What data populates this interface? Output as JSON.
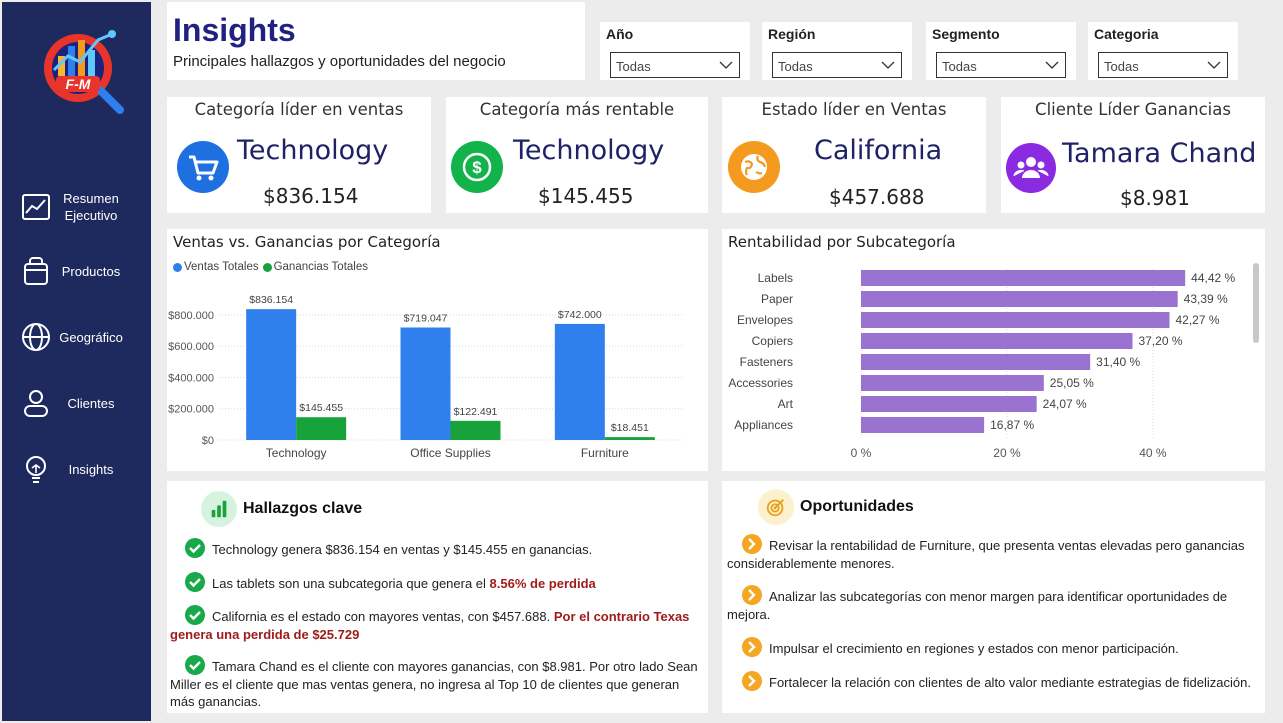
{
  "sidebar": {
    "items": [
      {
        "label": "Resumen Ejecutivo",
        "icon": "trend-chart-icon"
      },
      {
        "label": "Productos",
        "icon": "bag-icon"
      },
      {
        "label": "Geográfico",
        "icon": "globe-icon"
      },
      {
        "label": "Clientes",
        "icon": "user-icon"
      },
      {
        "label": "Insights",
        "icon": "lightbulb-icon"
      }
    ]
  },
  "header": {
    "title": "Insights",
    "subtitle": "Principales hallazgos y oportunidades del negocio"
  },
  "filters": [
    {
      "label": "Año",
      "value": "Todas"
    },
    {
      "label": "Región",
      "value": "Todas"
    },
    {
      "label": "Segmento",
      "value": "Todas"
    },
    {
      "label": "Categoria",
      "value": "Todas"
    }
  ],
  "kpis": [
    {
      "title": "Categoría líder en ventas",
      "main": "Technology",
      "value": "$836.154",
      "icon": "shopping-cart-icon",
      "color": "#1e6fe0"
    },
    {
      "title": "Categoría más rentable",
      "main": "Technology",
      "value": "$145.455",
      "icon": "dollar-coin-icon",
      "color": "#12b34a"
    },
    {
      "title": "Estado líder en Ventas",
      "main": "California",
      "value": "$457.688",
      "icon": "globe-icon",
      "color": "#f39a1f"
    },
    {
      "title": "Cliente Líder Ganancias",
      "main": "Tamara Chand",
      "value": "$8.981",
      "icon": "users-icon",
      "color": "#8a2be2"
    }
  ],
  "sales_chart": {
    "title": "Ventas vs. Ganancias por Categoría",
    "legend": [
      "Ventas Totales",
      "Ganancias Totales"
    ],
    "colors": [
      "#2f80ed",
      "#17a33a"
    ]
  },
  "profit_chart": {
    "title": "Rentabilidad por Subcategoría",
    "color": "#9a72d0"
  },
  "chart_data": [
    {
      "type": "bar",
      "title": "Ventas vs. Ganancias por Categoría",
      "categories": [
        "Technology",
        "Office Supplies",
        "Furniture"
      ],
      "series": [
        {
          "name": "Ventas Totales",
          "values": [
            836154,
            719047,
            742000
          ],
          "labels": [
            "$836.154",
            "$719.047",
            "$742.000"
          ]
        },
        {
          "name": "Ganancias Totales",
          "values": [
            145455,
            122491,
            18451
          ],
          "labels": [
            "$145.455",
            "$122.491",
            "$18.451"
          ]
        }
      ],
      "yticks": [
        "$0",
        "$200.000",
        "$400.000",
        "$600.000",
        "$800.000"
      ],
      "ylim": [
        0,
        850000
      ],
      "grid": true,
      "legend_position": "top-left"
    },
    {
      "type": "bar",
      "orientation": "horizontal",
      "title": "Rentabilidad por Subcategoría",
      "categories": [
        "Labels",
        "Paper",
        "Envelopes",
        "Copiers",
        "Fasteners",
        "Accessories",
        "Art",
        "Appliances"
      ],
      "values": [
        44.42,
        43.39,
        42.27,
        37.2,
        31.4,
        25.05,
        24.07,
        16.87
      ],
      "labels": [
        "44,42 %",
        "43,39 %",
        "42,27 %",
        "37,20 %",
        "31,40 %",
        "25,05 %",
        "24,07 %",
        "16,87 %"
      ],
      "xticks": [
        "0 %",
        "20 %",
        "40 %"
      ],
      "xlim": [
        0,
        47
      ]
    }
  ],
  "findings": {
    "title": "Hallazgos clave",
    "items": [
      {
        "text": "Technology genera $836.154 en ventas y $145.455 en ganancias.",
        "highlight": ""
      },
      {
        "text": "Las tablets son una subcategoria que genera el ",
        "highlight": "8.56% de perdida"
      },
      {
        "text": "California es el estado con mayores ventas, con $457.688. ",
        "highlight": "Por el contrario Texas genera una perdida de $25.729"
      },
      {
        "text": "Tamara Chand es el cliente con mayores ganancias, con $8.981. Por otro lado Sean Miller es el cliente que mas ventas genera, no ingresa al Top 10 de clientes que generan más ganancias.",
        "highlight": ""
      }
    ]
  },
  "opportunities": {
    "title": "Oportunidades",
    "items": [
      "Revisar la rentabilidad de Furniture, que presenta ventas elevadas pero ganancias considerablemente menores.",
      "Analizar las subcategorías con menor margen para identificar oportunidades de mejora.",
      "Impulsar el crecimiento en regiones y estados con menor participación.",
      "Fortalecer la relación con clientes de alto valor mediante estrategias de fidelización."
    ]
  }
}
